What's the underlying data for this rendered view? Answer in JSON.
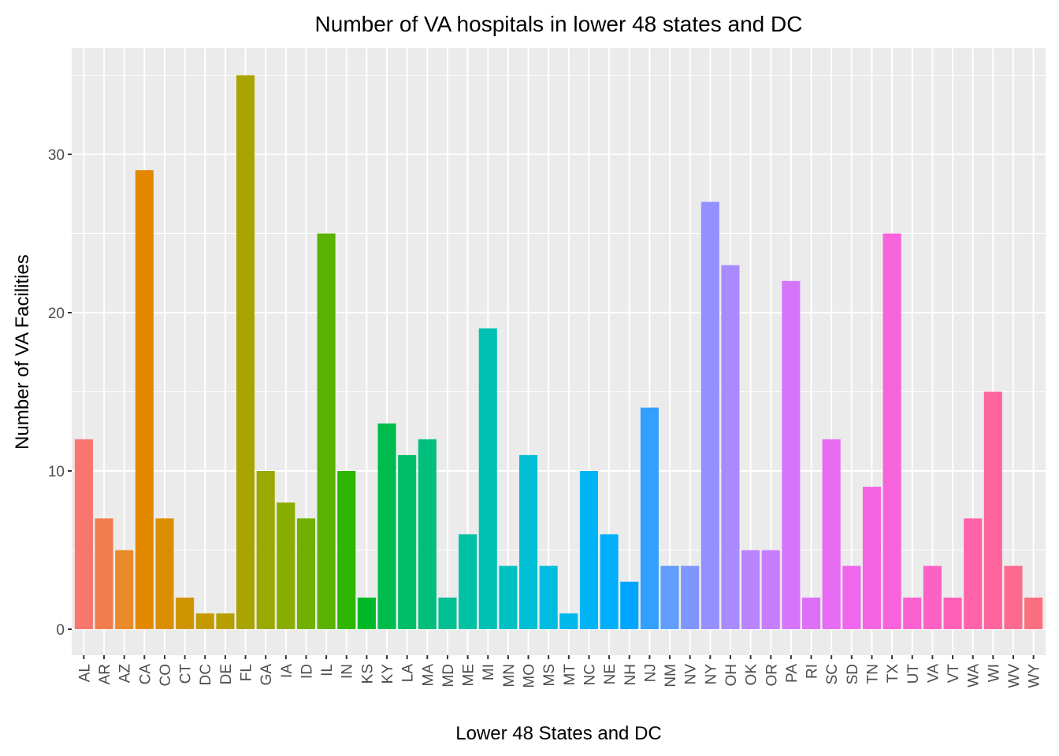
{
  "chart_data": {
    "type": "bar",
    "title": "Number of VA hospitals in lower 48 states and DC",
    "xlabel": "Lower 48 States and DC",
    "ylabel": "Number of VA Facilities",
    "ylim": [
      0,
      36.75
    ],
    "yticks": [
      0,
      10,
      20,
      30
    ],
    "grid": true,
    "legend": "none",
    "categories": [
      "AL",
      "AR",
      "AZ",
      "CA",
      "CO",
      "CT",
      "DC",
      "DE",
      "FL",
      "GA",
      "IA",
      "ID",
      "IL",
      "IN",
      "KS",
      "KY",
      "LA",
      "MA",
      "MD",
      "ME",
      "MI",
      "MN",
      "MO",
      "MS",
      "MT",
      "NC",
      "NE",
      "NH",
      "NJ",
      "NM",
      "NV",
      "NY",
      "OH",
      "OK",
      "OR",
      "PA",
      "RI",
      "SC",
      "SD",
      "TN",
      "TX",
      "UT",
      "VA",
      "VT",
      "WA",
      "WI",
      "WV",
      "WY"
    ],
    "values": [
      12,
      7,
      5,
      29,
      7,
      2,
      1,
      1,
      35,
      10,
      8,
      7,
      25,
      10,
      2,
      13,
      11,
      12,
      2,
      6,
      19,
      4,
      11,
      4,
      1,
      10,
      6,
      3,
      14,
      4,
      4,
      27,
      23,
      5,
      5,
      22,
      2,
      12,
      4,
      9,
      25,
      2,
      4,
      2,
      7,
      15,
      4,
      2
    ],
    "colors": [
      "#F8766D",
      "#F17D4F",
      "#E98A2B",
      "#E38900",
      "#DA8F00",
      "#D09400",
      "#C49A00",
      "#B79F00",
      "#A9A400",
      "#9AA800",
      "#88AC00",
      "#72B000",
      "#59B300",
      "#2FB600",
      "#00B92A",
      "#00BB4E",
      "#00BD68",
      "#00BF7D",
      "#00C091",
      "#00C1A3",
      "#00C1B4",
      "#00C0C4",
      "#00BED3",
      "#00BCE0",
      "#00B8EC",
      "#00B4F6",
      "#00AEFB",
      "#00A5FF",
      "#33A0FF",
      "#619CFF",
      "#7F96FF",
      "#9590FF",
      "#A98AFF",
      "#BA84FF",
      "#C87DFF",
      "#D475FC",
      "#DE70F7",
      "#E76BF3",
      "#EE67EC",
      "#F365E3",
      "#F763DA",
      "#FA62CF",
      "#FC61C3",
      "#FE61B7",
      "#FF63AA",
      "#FF659D",
      "#FD6A8F",
      "#FA6F80"
    ]
  }
}
